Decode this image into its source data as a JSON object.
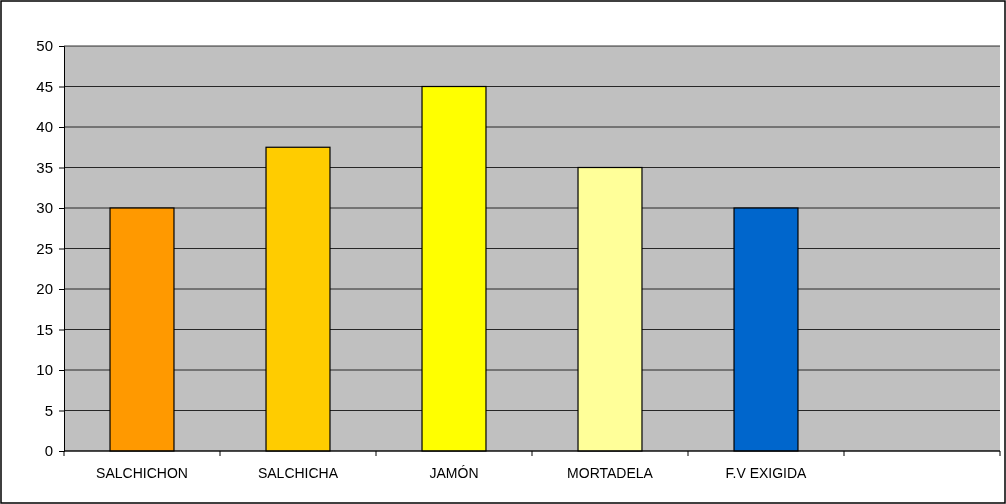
{
  "chart_data": {
    "type": "bar",
    "categories": [
      "SALCHICHON",
      "SALCHICHA",
      "JAMÓN",
      "MORTADELA",
      "F.V EXIGIDA",
      null
    ],
    "values": [
      30,
      37.5,
      45,
      35,
      30,
      null
    ],
    "colors": [
      "#ff9900",
      "#ffcc00",
      "#ffff00",
      "#ffff99",
      "#0066cc",
      null
    ],
    "ylim": [
      0,
      50
    ],
    "yticks": [
      0,
      5,
      10,
      15,
      20,
      25,
      30,
      35,
      40,
      45,
      50
    ],
    "grid": "y"
  }
}
